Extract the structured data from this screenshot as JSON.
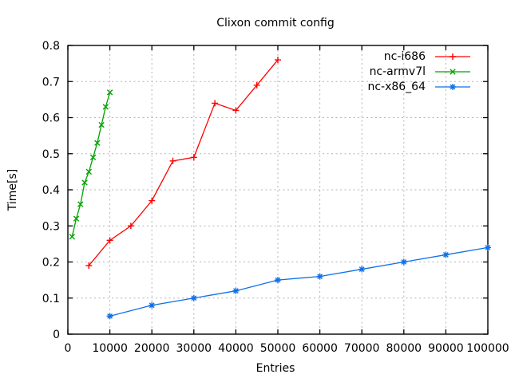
{
  "chart_data": {
    "type": "line",
    "title": "Clixon commit config",
    "xlabel": "Entries",
    "ylabel": "Time[s]",
    "xlim": [
      0,
      100000
    ],
    "ylim": [
      0,
      0.8
    ],
    "grid": true,
    "legend_position": "top-right-inside",
    "xticks": [
      0,
      10000,
      20000,
      30000,
      40000,
      50000,
      60000,
      70000,
      80000,
      90000,
      100000
    ],
    "xtick_labels": [
      "0",
      "10000",
      "20000",
      "30000",
      "40000",
      "50000",
      "60000",
      "70000",
      "80000",
      "90000",
      "100000"
    ],
    "yticks": [
      0,
      0.1,
      0.2,
      0.3,
      0.4,
      0.5,
      0.6,
      0.7,
      0.8
    ],
    "ytick_labels": [
      "0",
      "0.1",
      "0.2",
      "0.3",
      "0.4",
      "0.5",
      "0.6",
      "0.7",
      "0.8"
    ],
    "colors": {
      "grid": "#b3b3b3",
      "border": "#000000",
      "background": "#ffffff"
    },
    "series": [
      {
        "name": "nc-i686",
        "color": "#ff0000",
        "marker": "plus",
        "x": [
          5000,
          10000,
          15000,
          20000,
          25000,
          30000,
          35000,
          40000,
          45000,
          50000
        ],
        "y": [
          0.19,
          0.26,
          0.3,
          0.37,
          0.48,
          0.49,
          0.64,
          0.62,
          0.69,
          0.76
        ]
      },
      {
        "name": "nc-armv7l",
        "color": "#00a400",
        "marker": "cross",
        "x": [
          1000,
          2000,
          3000,
          4000,
          5000,
          6000,
          7000,
          8000,
          9000,
          10000
        ],
        "y": [
          0.27,
          0.32,
          0.36,
          0.42,
          0.45,
          0.49,
          0.53,
          0.58,
          0.63,
          0.67
        ]
      },
      {
        "name": "nc-x86_64",
        "color": "#0f70e8",
        "marker": "asterisk",
        "x": [
          10000,
          20000,
          30000,
          40000,
          50000,
          60000,
          70000,
          80000,
          90000,
          100000
        ],
        "y": [
          0.05,
          0.08,
          0.1,
          0.12,
          0.15,
          0.16,
          0.18,
          0.2,
          0.22,
          0.24
        ]
      }
    ]
  }
}
